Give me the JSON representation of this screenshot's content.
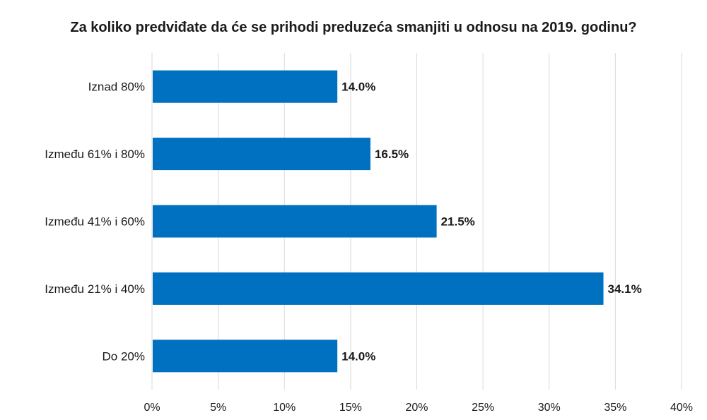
{
  "chart_data": {
    "type": "bar",
    "orientation": "horizontal",
    "title": "Za koliko predviđate da će se prihodi preduzeća smanjiti u odnosu na 2019. godinu?",
    "categories": [
      "Iznad 80%",
      "Između 61% i 80%",
      "Između 41% i 60%",
      "Između 21% i 40%",
      "Do 20%"
    ],
    "values": [
      14.0,
      16.5,
      21.5,
      34.1,
      14.0
    ],
    "data_labels": [
      "14.0%",
      "16.5%",
      "21.5%",
      "34.1%",
      "14.0%"
    ],
    "xlim": [
      0,
      40
    ],
    "xticks": [
      0,
      5,
      10,
      15,
      20,
      25,
      30,
      35,
      40
    ],
    "xtick_labels": [
      "0%",
      "5%",
      "10%",
      "15%",
      "20%",
      "25%",
      "30%",
      "35%",
      "40%"
    ],
    "grid": "vertical",
    "legend": "none",
    "colors": {
      "bar": "#0070C0",
      "grid": "#d9d9d9",
      "text": "#1a1a1a"
    }
  }
}
